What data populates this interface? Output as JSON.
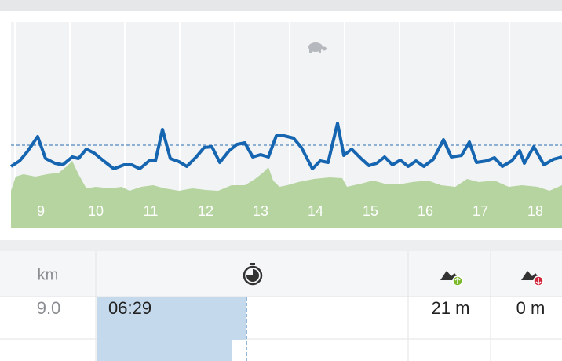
{
  "chart": {
    "km_labels": [
      "9",
      "10",
      "11",
      "12",
      "13",
      "14",
      "15",
      "16",
      "17",
      "18"
    ]
  },
  "table": {
    "header": {
      "km": "km"
    },
    "rows": [
      [
        "9.0",
        "06:29",
        "21 m",
        "0 m"
      ]
    ]
  }
}
